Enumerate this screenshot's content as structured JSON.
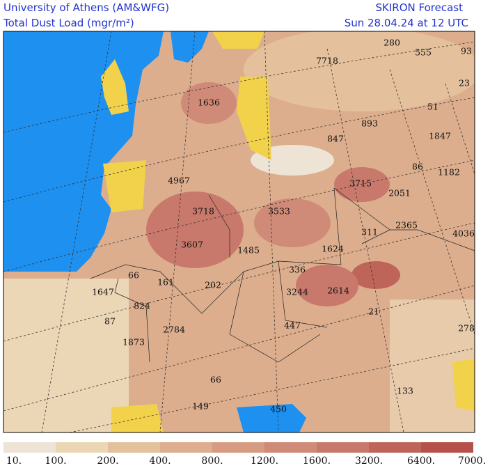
{
  "header": {
    "title_left": [
      "University of Athens (AM&WFG)",
      "Total Dust Load (mgr/m²)"
    ],
    "title_right": [
      "SKIRON Forecast",
      "Sun 28.04.24 at 12 UTC"
    ]
  },
  "map": {
    "labels": [
      "7718",
      "280",
      "555",
      "93",
      "23",
      "1636",
      "51",
      "893",
      "847",
      "1847",
      "86",
      "1182",
      "4967",
      "3715",
      "2051",
      "3718",
      "3533",
      "2365",
      "311",
      "4036",
      "3607",
      "1485",
      "1624",
      "336",
      "66",
      "161",
      "202",
      "1647",
      "3244",
      "2614",
      "824",
      "21",
      "87",
      "447",
      "2784",
      "278",
      "1873",
      "66",
      "133",
      "149",
      "450"
    ]
  },
  "colorbar": {
    "labels": [
      "10.",
      "100.",
      "200.",
      "400.",
      "800.",
      "1200.",
      "1600.",
      "3200.",
      "6400.",
      "7000."
    ],
    "colors": [
      "#ede4d6",
      "#ebd6b6",
      "#e4c19c",
      "#ddad8d",
      "#d69b82",
      "#cf8b77",
      "#c8796b",
      "#bf6459",
      "#b7504a"
    ]
  }
}
